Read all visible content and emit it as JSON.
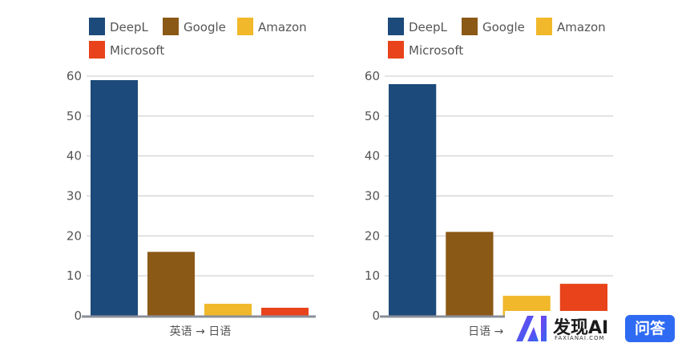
{
  "legend": [
    {
      "name": "DeepL",
      "color": "#1c4a7a"
    },
    {
      "name": "Google",
      "color": "#8b5916"
    },
    {
      "name": "Amazon",
      "color": "#f0b82a"
    },
    {
      "name": "Microsoft",
      "color": "#e8431a"
    }
  ],
  "chart_data": [
    {
      "type": "bar",
      "xlabel": "英语 → 日语",
      "categories": [
        "DeepL",
        "Google",
        "Amazon",
        "Microsoft"
      ],
      "values": [
        59,
        16,
        3,
        2
      ],
      "ylim": [
        0,
        60
      ],
      "yticks": [
        0,
        10,
        20,
        30,
        40,
        50,
        60
      ],
      "grid": true,
      "legend_position": "top"
    },
    {
      "type": "bar",
      "xlabel": "日语 → 英语",
      "categories": [
        "DeepL",
        "Google",
        "Amazon",
        "Microsoft"
      ],
      "values": [
        58,
        21,
        5,
        8
      ],
      "ylim": [
        0,
        60
      ],
      "yticks": [
        0,
        10,
        20,
        30,
        40,
        50,
        60
      ],
      "grid": true,
      "legend_position": "top"
    }
  ],
  "watermark": {
    "brand": "发现AI",
    "sub": "FAXIANAI.COM",
    "badge": "问答"
  }
}
